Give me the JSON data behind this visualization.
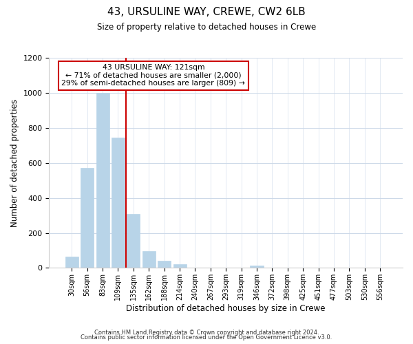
{
  "title": "43, URSULINE WAY, CREWE, CW2 6LB",
  "subtitle": "Size of property relative to detached houses in Crewe",
  "xlabel": "Distribution of detached houses by size in Crewe",
  "ylabel": "Number of detached properties",
  "bar_labels": [
    "30sqm",
    "56sqm",
    "83sqm",
    "109sqm",
    "135sqm",
    "162sqm",
    "188sqm",
    "214sqm",
    "240sqm",
    "267sqm",
    "293sqm",
    "319sqm",
    "346sqm",
    "372sqm",
    "398sqm",
    "425sqm",
    "451sqm",
    "477sqm",
    "503sqm",
    "530sqm",
    "556sqm"
  ],
  "bar_values": [
    65,
    570,
    1000,
    745,
    310,
    95,
    40,
    20,
    0,
    0,
    0,
    0,
    15,
    0,
    0,
    0,
    0,
    0,
    0,
    0,
    0
  ],
  "bar_color": "#b8d4e8",
  "bar_edge_color": "#b8d4e8",
  "vline_x": 3.5,
  "vline_color": "#cc0000",
  "annotation_title": "43 URSULINE WAY: 121sqm",
  "annotation_line1": "← 71% of detached houses are smaller (2,000)",
  "annotation_line2": "29% of semi-detached houses are larger (809) →",
  "annotation_box_color": "#ffffff",
  "annotation_box_edge": "#cc0000",
  "ylim": [
    0,
    1200
  ],
  "yticks": [
    0,
    200,
    400,
    600,
    800,
    1000,
    1200
  ],
  "footer1": "Contains HM Land Registry data © Crown copyright and database right 2024.",
  "footer2": "Contains public sector information licensed under the Open Government Licence v3.0.",
  "background_color": "#ffffff",
  "grid_color": "#ccd8e8"
}
